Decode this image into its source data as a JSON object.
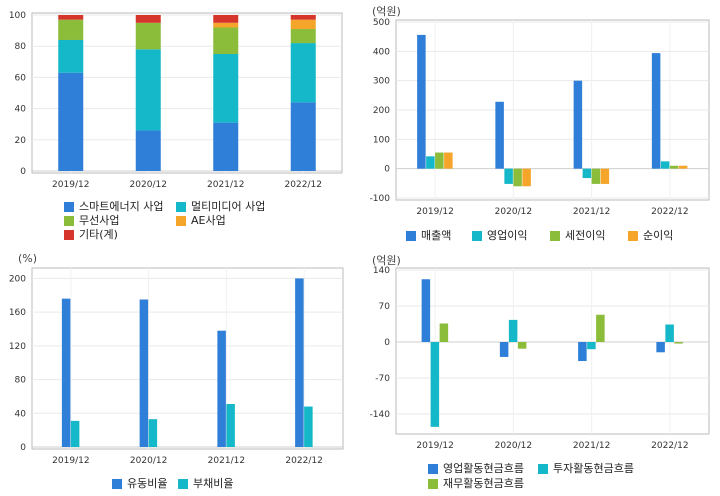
{
  "chart_data": [
    {
      "id": "segment",
      "type": "bar",
      "stacked": true,
      "categories": [
        "2019/12",
        "2020/12",
        "2021/12",
        "2022/12"
      ],
      "ylim": [
        0,
        100
      ],
      "yticks": [
        "0",
        "20",
        "40",
        "60",
        "80",
        "100"
      ],
      "unit": "",
      "series": [
        {
          "name": "스마트에너지 사업",
          "color": "#2f7ed8",
          "values": [
            63,
            26,
            31,
            44
          ]
        },
        {
          "name": "멀티미디어 사업",
          "color": "#14b8c8",
          "values": [
            21,
            52,
            44,
            38
          ]
        },
        {
          "name": "무선사업",
          "color": "#8bbc3a",
          "values": [
            13,
            17,
            17,
            9
          ]
        },
        {
          "name": "AE사업",
          "color": "#f4a52a",
          "values": [
            0,
            0,
            3,
            6
          ]
        },
        {
          "name": "기타(계)",
          "color": "#d6352b",
          "values": [
            3,
            5,
            5,
            3
          ]
        }
      ]
    },
    {
      "id": "income",
      "type": "bar",
      "categories": [
        "2019/12",
        "2020/12",
        "2021/12",
        "2022/12"
      ],
      "ylim": [
        -100,
        500
      ],
      "yticks": [
        "-100",
        "0",
        "100",
        "200",
        "300",
        "400",
        "500"
      ],
      "unit": "(억원)",
      "series": [
        {
          "name": "매출액",
          "color": "#2f7ed8",
          "values": [
            456,
            228,
            300,
            394
          ]
        },
        {
          "name": "영업이익",
          "color": "#14b8c8",
          "values": [
            42,
            -52,
            -32,
            25
          ]
        },
        {
          "name": "세전이익",
          "color": "#8bbc3a",
          "values": [
            55,
            -60,
            -52,
            10
          ]
        },
        {
          "name": "순이익",
          "color": "#f4a52a",
          "values": [
            55,
            -60,
            -52,
            10
          ]
        }
      ]
    },
    {
      "id": "ratio",
      "type": "bar",
      "categories": [
        "2019/12",
        "2020/12",
        "2021/12",
        "2022/12"
      ],
      "ylim": [
        0,
        210
      ],
      "yticks": [
        "0",
        "40",
        "80",
        "120",
        "160",
        "200"
      ],
      "unit": "(%)",
      "series": [
        {
          "name": "유동비율",
          "color": "#2f7ed8",
          "values": [
            176,
            175,
            138,
            200
          ]
        },
        {
          "name": "부채비율",
          "color": "#14b8c8",
          "values": [
            31,
            33,
            51,
            48
          ]
        }
      ]
    },
    {
      "id": "cashflow",
      "type": "bar",
      "categories": [
        "2019/12",
        "2020/12",
        "2021/12",
        "2022/12"
      ],
      "ylim": [
        -175,
        140
      ],
      "yticks": [
        "-140",
        "-70",
        "0",
        "70",
        "140"
      ],
      "unit": "(억원)",
      "series": [
        {
          "name": "영업활동현금흐름",
          "color": "#2f7ed8",
          "values": [
            122,
            -29,
            -37,
            -20
          ]
        },
        {
          "name": "투자활동현금흐름",
          "color": "#14b8c8",
          "values": [
            -165,
            43,
            -14,
            34
          ]
        },
        {
          "name": "재무활동현금흐름",
          "color": "#8bbc3a",
          "values": [
            36,
            -13,
            53,
            -3
          ]
        }
      ]
    }
  ]
}
